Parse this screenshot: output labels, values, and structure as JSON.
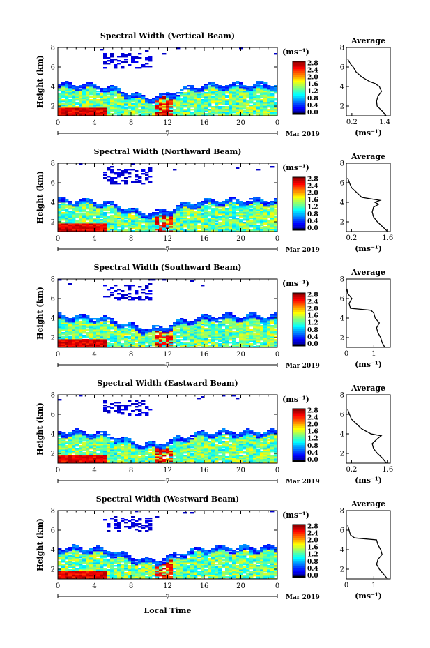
{
  "figure": {
    "xlabel": "Local Time",
    "day_label": "7",
    "month_label": "Mar 2019",
    "ylabel": "Height (km)",
    "colorbar_unit": "(ms⁻¹)",
    "colorbar_ticks": [
      "2.8",
      "2.4",
      "2.0",
      "1.6",
      "1.2",
      "0.8",
      "0.4",
      "0.0"
    ],
    "avg_title": "Average",
    "avg_xlabel": "(ms⁻¹)"
  },
  "chart_data": [
    {
      "type": "heatmap",
      "title": "Spectral Width (Vertical Beam)",
      "xlabel": "Local Time",
      "ylabel": "Height (km)",
      "x_ticks": [
        "0",
        "4",
        "8",
        "12",
        "16",
        "20",
        "0"
      ],
      "y_ticks": [
        "2",
        "4",
        "6",
        "8"
      ],
      "xlim": [
        0,
        24
      ],
      "ylim": [
        1,
        8
      ],
      "colorbar_range": [
        0.0,
        2.8
      ],
      "colormap": "jet",
      "profile": {
        "title": "Average",
        "x_ticks": [
          "0.2",
          "1.4"
        ],
        "xlim": [
          0.0,
          1.6
        ],
        "y_ticks": [
          "2",
          "4",
          "6",
          "8"
        ],
        "height_km": [
          1.0,
          1.5,
          2.0,
          2.5,
          3.0,
          3.5,
          4.0,
          4.3,
          4.5,
          5.0,
          5.5,
          6.0,
          6.3,
          6.8
        ],
        "width": [
          1.45,
          1.3,
          1.12,
          1.1,
          1.15,
          1.28,
          1.2,
          1.05,
          0.85,
          0.55,
          0.35,
          0.25,
          0.15,
          0.05
        ]
      }
    },
    {
      "type": "heatmap",
      "title": "Spectral Width (Northward Beam)",
      "xlabel": "Local Time",
      "ylabel": "Height (km)",
      "x_ticks": [
        "0",
        "4",
        "8",
        "12",
        "16",
        "20",
        "0"
      ],
      "y_ticks": [
        "2",
        "4",
        "6",
        "8"
      ],
      "xlim": [
        0,
        24
      ],
      "ylim": [
        1,
        8
      ],
      "colorbar_range": [
        0.0,
        2.8
      ],
      "colormap": "jet",
      "profile": {
        "title": "Average",
        "x_ticks": [
          "0.2",
          "1.6"
        ],
        "xlim": [
          0.0,
          1.7
        ],
        "y_ticks": [
          "2",
          "4",
          "6",
          "8"
        ],
        "height_km": [
          1.0,
          1.5,
          2.0,
          2.5,
          3.0,
          3.5,
          3.8,
          4.0,
          4.2,
          4.5,
          5.0,
          5.5,
          6.0,
          6.5
        ],
        "width": [
          1.6,
          1.4,
          1.2,
          1.05,
          1.0,
          1.05,
          1.25,
          1.1,
          1.3,
          0.6,
          0.4,
          0.2,
          0.12,
          0.05
        ]
      }
    },
    {
      "type": "heatmap",
      "title": "Spectral Width (Southward Beam)",
      "xlabel": "Local Time",
      "ylabel": "Height (km)",
      "x_ticks": [
        "0",
        "4",
        "8",
        "12",
        "16",
        "20",
        "0"
      ],
      "y_ticks": [
        "2",
        "4",
        "6",
        "8"
      ],
      "xlim": [
        0,
        24
      ],
      "ylim": [
        1,
        8
      ],
      "colorbar_range": [
        0.0,
        2.8
      ],
      "colormap": "jet",
      "profile": {
        "title": "Average",
        "x_ticks": [
          "0",
          "1"
        ],
        "xlim": [
          0.0,
          1.6
        ],
        "y_ticks": [
          "2",
          "4",
          "6",
          "8"
        ],
        "height_km": [
          1.0,
          1.5,
          2.0,
          2.5,
          3.0,
          3.5,
          4.0,
          4.5,
          4.8,
          5.0,
          5.5,
          6.0,
          6.5,
          7.0
        ],
        "width": [
          1.4,
          1.3,
          1.25,
          1.15,
          1.1,
          1.2,
          1.05,
          1.0,
          0.9,
          0.15,
          0.1,
          0.2,
          0.05,
          0.02
        ]
      }
    },
    {
      "type": "heatmap",
      "title": "Spectral Width (Eastward Beam)",
      "xlabel": "Local Time",
      "ylabel": "Height (km)",
      "x_ticks": [
        "0",
        "4",
        "8",
        "12",
        "16",
        "20",
        "0"
      ],
      "y_ticks": [
        "2",
        "4",
        "6",
        "8"
      ],
      "xlim": [
        0,
        24
      ],
      "ylim": [
        1,
        8
      ],
      "colorbar_range": [
        0.0,
        2.8
      ],
      "colormap": "jet",
      "profile": {
        "title": "Average",
        "x_ticks": [
          "0.2",
          "1.6"
        ],
        "xlim": [
          0.0,
          1.7
        ],
        "y_ticks": [
          "2",
          "4",
          "6",
          "8"
        ],
        "height_km": [
          1.0,
          1.5,
          2.0,
          2.5,
          3.0,
          3.5,
          3.8,
          4.0,
          4.5,
          5.0,
          5.5,
          6.0,
          6.5
        ],
        "width": [
          1.55,
          1.4,
          1.2,
          1.05,
          1.0,
          1.2,
          1.35,
          0.95,
          0.6,
          0.4,
          0.2,
          0.12,
          0.05
        ]
      }
    },
    {
      "type": "heatmap",
      "title": "Spectral Width (Westward Beam)",
      "xlabel": "Local Time",
      "ylabel": "Height (km)",
      "x_ticks": [
        "0",
        "4",
        "8",
        "12",
        "16",
        "20",
        "0"
      ],
      "y_ticks": [
        "2",
        "4",
        "6",
        "8"
      ],
      "xlim": [
        0,
        24
      ],
      "ylim": [
        1,
        8
      ],
      "colorbar_range": [
        0.0,
        2.8
      ],
      "colormap": "jet",
      "profile": {
        "title": "Average",
        "x_ticks": [
          "0",
          "1"
        ],
        "xlim": [
          0.0,
          1.6
        ],
        "y_ticks": [
          "2",
          "4",
          "6",
          "8"
        ],
        "height_km": [
          1.0,
          1.5,
          2.0,
          2.5,
          3.0,
          3.5,
          4.0,
          4.5,
          5.0,
          5.2,
          5.5,
          6.0,
          6.5
        ],
        "width": [
          1.5,
          1.35,
          1.2,
          1.1,
          1.15,
          1.3,
          1.25,
          1.15,
          1.1,
          0.3,
          0.15,
          0.1,
          0.05
        ]
      }
    }
  ]
}
